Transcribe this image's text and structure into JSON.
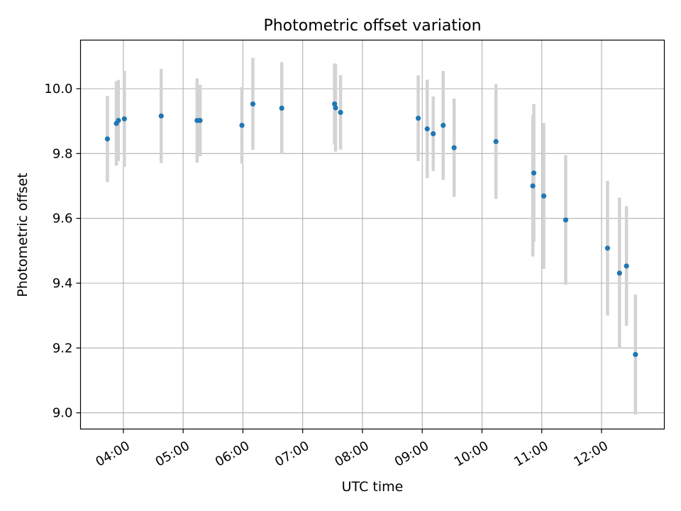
{
  "chart_data": {
    "type": "scatter",
    "title": "Photometric offset variation",
    "xlabel": "UTC time",
    "ylabel": "Photometric offset",
    "xlim": [
      "03:17",
      "13:03"
    ],
    "ylim": [
      8.95,
      10.15
    ],
    "x_ticks": [
      "04:00",
      "05:00",
      "06:00",
      "07:00",
      "08:00",
      "09:00",
      "10:00",
      "11:00",
      "12:00"
    ],
    "y_ticks": [
      9.0,
      9.2,
      9.4,
      9.6,
      9.8,
      10.0
    ],
    "y_tick_labels": [
      "9.0",
      "9.2",
      "9.4",
      "9.6",
      "9.8",
      "10.0"
    ],
    "grid": true,
    "colors": {
      "point": "#1f77b4",
      "errorbar": "#d3d3d3",
      "grid": "#b0b0b0"
    },
    "series": [
      {
        "points": [
          {
            "x": "03:44",
            "y": 9.845,
            "err": 0.133
          },
          {
            "x": "03:53",
            "y": 9.893,
            "err": 0.13
          },
          {
            "x": "03:55",
            "y": 9.902,
            "err": 0.125
          },
          {
            "x": "04:01",
            "y": 9.907,
            "err": 0.148
          },
          {
            "x": "04:38",
            "y": 9.916,
            "err": 0.145
          },
          {
            "x": "05:14",
            "y": 9.902,
            "err": 0.13
          },
          {
            "x": "05:17",
            "y": 9.902,
            "err": 0.11
          },
          {
            "x": "05:59",
            "y": 9.887,
            "err": 0.118
          },
          {
            "x": "06:10",
            "y": 9.953,
            "err": 0.142
          },
          {
            "x": "06:39",
            "y": 9.94,
            "err": 0.142
          },
          {
            "x": "07:32",
            "y": 9.953,
            "err": 0.125
          },
          {
            "x": "07:33",
            "y": 9.941,
            "err": 0.135
          },
          {
            "x": "07:38",
            "y": 9.927,
            "err": 0.115
          },
          {
            "x": "08:56",
            "y": 9.909,
            "err": 0.132
          },
          {
            "x": "09:05",
            "y": 9.876,
            "err": 0.152
          },
          {
            "x": "09:11",
            "y": 9.861,
            "err": 0.115
          },
          {
            "x": "09:21",
            "y": 9.887,
            "err": 0.168
          },
          {
            "x": "09:32",
            "y": 9.818,
            "err": 0.152
          },
          {
            "x": "10:14",
            "y": 9.837,
            "err": 0.177
          },
          {
            "x": "10:51",
            "y": 9.7,
            "err": 0.218
          },
          {
            "x": "10:52",
            "y": 9.74,
            "err": 0.213
          },
          {
            "x": "11:02",
            "y": 9.669,
            "err": 0.225
          },
          {
            "x": "11:24",
            "y": 9.595,
            "err": 0.2
          },
          {
            "x": "12:06",
            "y": 9.508,
            "err": 0.208
          },
          {
            "x": "12:18",
            "y": 9.431,
            "err": 0.233
          },
          {
            "x": "12:25",
            "y": 9.453,
            "err": 0.185
          },
          {
            "x": "12:34",
            "y": 9.18,
            "err": 0.185
          }
        ]
      }
    ]
  }
}
